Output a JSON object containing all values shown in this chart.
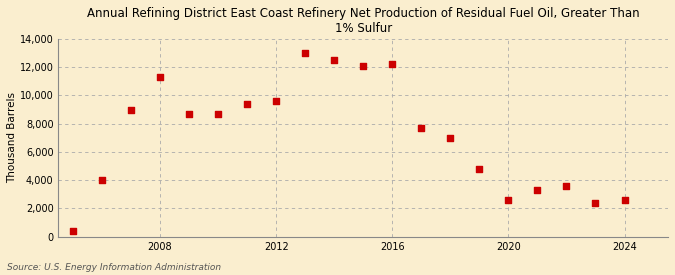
{
  "title": "Annual Refining District East Coast Refinery Net Production of Residual Fuel Oil, Greater Than\n1% Sulfur",
  "ylabel": "Thousand Barrels",
  "source": "Source: U.S. Energy Information Administration",
  "background_color": "#faeecf",
  "plot_background_color": "#faeecf",
  "marker_color": "#cc0000",
  "marker": "s",
  "marker_size": 4,
  "years": [
    2005,
    2006,
    2007,
    2008,
    2009,
    2010,
    2011,
    2012,
    2013,
    2014,
    2015,
    2016,
    2017,
    2018,
    2019,
    2020,
    2021,
    2022,
    2023,
    2024
  ],
  "values": [
    400,
    4000,
    9000,
    11300,
    8700,
    8700,
    9400,
    9600,
    13000,
    12500,
    12100,
    12200,
    7700,
    7000,
    4800,
    2600,
    3300,
    3600,
    2400,
    2600
  ],
  "ylim": [
    0,
    14000
  ],
  "xlim": [
    2004.5,
    2025.5
  ],
  "yticks": [
    0,
    2000,
    4000,
    6000,
    8000,
    10000,
    12000,
    14000
  ],
  "xticks": [
    2008,
    2012,
    2016,
    2020,
    2024
  ],
  "grid_color": "#aaaaaa",
  "title_fontsize": 8.5,
  "axis_fontsize": 7.5,
  "tick_fontsize": 7,
  "source_fontsize": 6.5
}
